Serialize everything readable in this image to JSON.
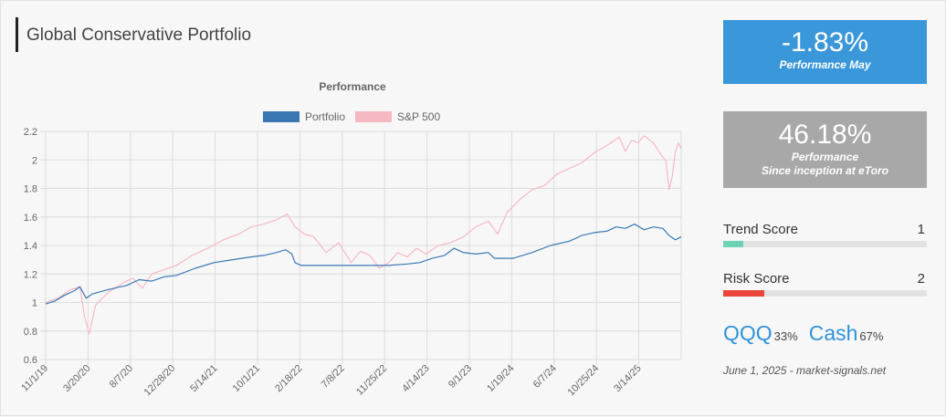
{
  "header": {
    "title": "Global Conservative Portfolio"
  },
  "kpis": {
    "monthly": {
      "value": "-1.83%",
      "label": "Performance May"
    },
    "inception": {
      "value": "46.18%",
      "label_line1": "Performance",
      "label_line2": "Since inception at eToro"
    }
  },
  "scores": {
    "trend": {
      "label": "Trend Score",
      "value": "1",
      "fraction": 0.1,
      "color": "#6dd3b4"
    },
    "risk": {
      "label": "Risk Score",
      "value": "2",
      "fraction": 0.2,
      "color": "#e8463a"
    }
  },
  "allocation": [
    {
      "ticker": "QQQ",
      "pct": "33%"
    },
    {
      "ticker": "Cash",
      "pct": "67%"
    }
  ],
  "footer": {
    "text": "June 1, 2025 - market-signals.net"
  },
  "chart_data": {
    "type": "line",
    "title": "Performance",
    "xlabel": "",
    "ylabel": "",
    "ylim": [
      0.6,
      2.2
    ],
    "yticks": [
      "0.6",
      "0.8",
      "1",
      "1.2",
      "1.4",
      "1.6",
      "1.8",
      "2",
      "2.2"
    ],
    "x_tick_labels": [
      "11/1/19",
      "3/20/20",
      "8/7/20",
      "12/28/20",
      "5/14/21",
      "10/1/21",
      "2/18/22",
      "7/8/22",
      "11/25/22",
      "4/14/23",
      "9/1/23",
      "1/19/24",
      "6/7/24",
      "10/25/24",
      "3/14/25"
    ],
    "x_range_days": [
      0,
      2039
    ],
    "series": [
      {
        "name": "Portfolio",
        "color": "#3a78b4",
        "points": [
          [
            0,
            0.99
          ],
          [
            30,
            1.01
          ],
          [
            60,
            1.05
          ],
          [
            90,
            1.08
          ],
          [
            110,
            1.11
          ],
          [
            130,
            1.03
          ],
          [
            150,
            1.06
          ],
          [
            200,
            1.09
          ],
          [
            260,
            1.12
          ],
          [
            300,
            1.16
          ],
          [
            340,
            1.15
          ],
          [
            380,
            1.18
          ],
          [
            420,
            1.19
          ],
          [
            480,
            1.24
          ],
          [
            540,
            1.28
          ],
          [
            600,
            1.3
          ],
          [
            660,
            1.32
          ],
          [
            700,
            1.33
          ],
          [
            740,
            1.35
          ],
          [
            770,
            1.37
          ],
          [
            790,
            1.34
          ],
          [
            800,
            1.28
          ],
          [
            820,
            1.26
          ],
          [
            900,
            1.26
          ],
          [
            960,
            1.26
          ],
          [
            1040,
            1.26
          ],
          [
            1100,
            1.26
          ],
          [
            1160,
            1.27
          ],
          [
            1200,
            1.28
          ],
          [
            1240,
            1.31
          ],
          [
            1280,
            1.33
          ],
          [
            1310,
            1.38
          ],
          [
            1340,
            1.35
          ],
          [
            1380,
            1.34
          ],
          [
            1420,
            1.35
          ],
          [
            1440,
            1.31
          ],
          [
            1500,
            1.31
          ],
          [
            1560,
            1.35
          ],
          [
            1620,
            1.4
          ],
          [
            1680,
            1.43
          ],
          [
            1720,
            1.47
          ],
          [
            1760,
            1.49
          ],
          [
            1800,
            1.5
          ],
          [
            1830,
            1.53
          ],
          [
            1860,
            1.52
          ],
          [
            1890,
            1.55
          ],
          [
            1920,
            1.51
          ],
          [
            1950,
            1.53
          ],
          [
            1980,
            1.52
          ],
          [
            2000,
            1.47
          ],
          [
            2020,
            1.44
          ],
          [
            2039,
            1.46
          ]
        ]
      },
      {
        "name": "S&P 500",
        "color": "#f6b9c3",
        "points": [
          [
            0,
            1.0
          ],
          [
            40,
            1.03
          ],
          [
            80,
            1.09
          ],
          [
            110,
            1.11
          ],
          [
            125,
            0.9
          ],
          [
            140,
            0.78
          ],
          [
            160,
            0.98
          ],
          [
            200,
            1.07
          ],
          [
            250,
            1.14
          ],
          [
            280,
            1.17
          ],
          [
            310,
            1.1
          ],
          [
            340,
            1.2
          ],
          [
            380,
            1.23
          ],
          [
            420,
            1.26
          ],
          [
            470,
            1.33
          ],
          [
            520,
            1.38
          ],
          [
            570,
            1.44
          ],
          [
            620,
            1.48
          ],
          [
            660,
            1.53
          ],
          [
            700,
            1.55
          ],
          [
            740,
            1.58
          ],
          [
            775,
            1.62
          ],
          [
            800,
            1.53
          ],
          [
            830,
            1.48
          ],
          [
            860,
            1.46
          ],
          [
            900,
            1.35
          ],
          [
            940,
            1.42
          ],
          [
            980,
            1.28
          ],
          [
            1010,
            1.36
          ],
          [
            1040,
            1.33
          ],
          [
            1070,
            1.24
          ],
          [
            1100,
            1.28
          ],
          [
            1130,
            1.35
          ],
          [
            1160,
            1.32
          ],
          [
            1190,
            1.38
          ],
          [
            1220,
            1.34
          ],
          [
            1260,
            1.4
          ],
          [
            1300,
            1.42
          ],
          [
            1340,
            1.46
          ],
          [
            1380,
            1.53
          ],
          [
            1420,
            1.57
          ],
          [
            1450,
            1.48
          ],
          [
            1480,
            1.63
          ],
          [
            1520,
            1.72
          ],
          [
            1560,
            1.79
          ],
          [
            1600,
            1.82
          ],
          [
            1640,
            1.9
          ],
          [
            1680,
            1.94
          ],
          [
            1720,
            1.98
          ],
          [
            1760,
            2.05
          ],
          [
            1800,
            2.1
          ],
          [
            1840,
            2.16
          ],
          [
            1860,
            2.06
          ],
          [
            1880,
            2.14
          ],
          [
            1900,
            2.12
          ],
          [
            1920,
            2.17
          ],
          [
            1950,
            2.12
          ],
          [
            1970,
            2.05
          ],
          [
            1990,
            1.99
          ],
          [
            2000,
            1.79
          ],
          [
            2010,
            1.88
          ],
          [
            2020,
            2.05
          ],
          [
            2030,
            2.12
          ],
          [
            2039,
            2.08
          ]
        ]
      }
    ]
  }
}
